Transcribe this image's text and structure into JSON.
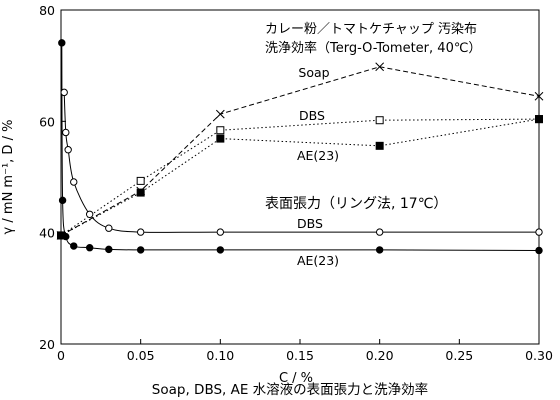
{
  "chart_data": {
    "type": "line",
    "title": "Soap, DBS, AE 水溶液の表面張力と洗浄効率",
    "xlabel": "C / %",
    "ylabel": "γ / mN m⁻¹, D / %",
    "xlim": [
      0,
      0.3
    ],
    "ylim": [
      20,
      80
    ],
    "x_ticks": [
      "0",
      "0.05",
      "0.10",
      "0.15",
      "0.20",
      "0.25",
      "0.30"
    ],
    "x_tick_values": [
      0,
      0.05,
      0.1,
      0.15,
      0.2,
      0.25,
      0.3
    ],
    "y_ticks": [
      "20",
      "40",
      "60",
      "80"
    ],
    "y_tick_values": [
      20,
      40,
      60,
      80
    ],
    "grid": false,
    "annotations": {
      "detergency_title_line1": "カレー粉／トマトケチャップ 汚染布",
      "detergency_title_line2": "洗浄効率（Terg-O-Tometer, 40℃）",
      "surface_tension_title": "表面張力（リング法, 17℃）"
    },
    "series": [
      {
        "name": "Soap",
        "group": "detergency",
        "marker": "x",
        "line": "dashed",
        "x": [
          0,
          0.05,
          0.1,
          0.2,
          0.3
        ],
        "y": [
          39.5,
          47.5,
          61.3,
          69.8,
          64.5
        ]
      },
      {
        "name": "DBS",
        "group": "detergency",
        "marker": "open-square",
        "line": "dotted",
        "x": [
          0,
          0.05,
          0.1,
          0.2,
          0.3
        ],
        "y": [
          39.5,
          49.3,
          58.4,
          60.2,
          60.4
        ]
      },
      {
        "name": "AE(23)",
        "group": "detergency",
        "marker": "filled-square",
        "line": "dotted",
        "x": [
          0,
          0.05,
          0.1,
          0.2,
          0.3
        ],
        "y": [
          39.5,
          47.2,
          56.9,
          55.6,
          60.4
        ]
      },
      {
        "name": "DBS",
        "group": "surface-tension",
        "marker": "open-circle",
        "line": "solid",
        "x": [
          0.002,
          0.003,
          0.0045,
          0.008,
          0.018,
          0.03,
          0.05,
          0.1,
          0.2,
          0.3
        ],
        "y": [
          65.2,
          58.0,
          54.9,
          49.1,
          43.3,
          40.8,
          40.1,
          40.1,
          40.1,
          40.1
        ]
      },
      {
        "name": "AE(23)",
        "group": "surface-tension",
        "marker": "filled-circle",
        "line": "solid",
        "x": [
          0.0005,
          0.001,
          0.003,
          0.008,
          0.018,
          0.03,
          0.05,
          0.1,
          0.2,
          0.3
        ],
        "y": [
          74.1,
          45.8,
          39.3,
          37.6,
          37.3,
          37.0,
          36.9,
          36.9,
          36.9,
          36.8
        ]
      }
    ]
  }
}
